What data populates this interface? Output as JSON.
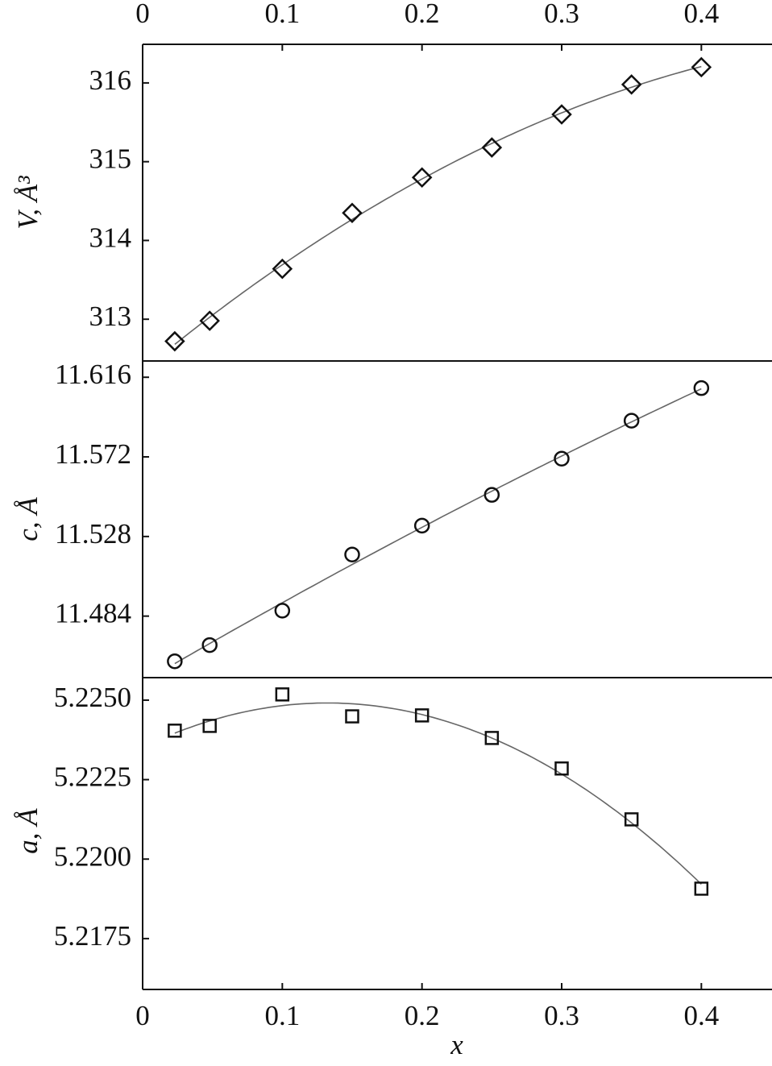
{
  "chart_data": [
    {
      "type": "scatter",
      "marker": "diamond",
      "fit": "quadratic",
      "y_label": "V, Å³",
      "x_axis": "top",
      "x": [
        0.023,
        0.048,
        0.1,
        0.15,
        0.2,
        0.25,
        0.3,
        0.35,
        0.4
      ],
      "values": [
        312.72,
        312.98,
        313.64,
        314.35,
        314.8,
        315.18,
        315.6,
        315.98,
        316.2
      ],
      "xlim": [
        0,
        0.45
      ],
      "xticks": [
        0,
        0.1,
        0.2,
        0.3,
        0.4
      ],
      "ylim": [
        312.47,
        316.49
      ],
      "yticks": [
        313,
        314,
        315,
        316
      ]
    },
    {
      "type": "scatter",
      "marker": "circle",
      "fit": "quadratic",
      "y_label": "c, Å",
      "x": [
        0.023,
        0.048,
        0.1,
        0.15,
        0.2,
        0.25,
        0.3,
        0.35,
        0.4
      ],
      "values": [
        11.459,
        11.468,
        11.487,
        11.518,
        11.534,
        11.551,
        11.571,
        11.592,
        11.61
      ],
      "xlim": [
        0,
        0.45
      ],
      "ylim": [
        11.45,
        11.625
      ],
      "yticks": [
        11.484,
        11.528,
        11.572,
        11.616
      ]
    },
    {
      "type": "scatter",
      "marker": "square",
      "fit": "quadratic",
      "y_label": "a, Å",
      "x_axis": "bottom",
      "x_label": "x",
      "x": [
        0.023,
        0.048,
        0.1,
        0.15,
        0.2,
        0.25,
        0.3,
        0.35,
        0.4
      ],
      "values": [
        5.22404,
        5.22419,
        5.22518,
        5.22449,
        5.22452,
        5.22381,
        5.22285,
        5.22125,
        5.21907
      ],
      "xlim": [
        0,
        0.45
      ],
      "xticks": [
        0,
        0.1,
        0.2,
        0.3,
        0.4
      ],
      "ylim": [
        5.2159,
        5.22586
      ],
      "yticks": [
        {
          "value": 5.2175,
          "label": "5.2175"
        },
        {
          "value": 5.22,
          "label": "5.2200"
        },
        {
          "value": 5.2225,
          "label": "5.2225"
        },
        {
          "value": 5.225,
          "label": "5.2250"
        }
      ]
    }
  ]
}
